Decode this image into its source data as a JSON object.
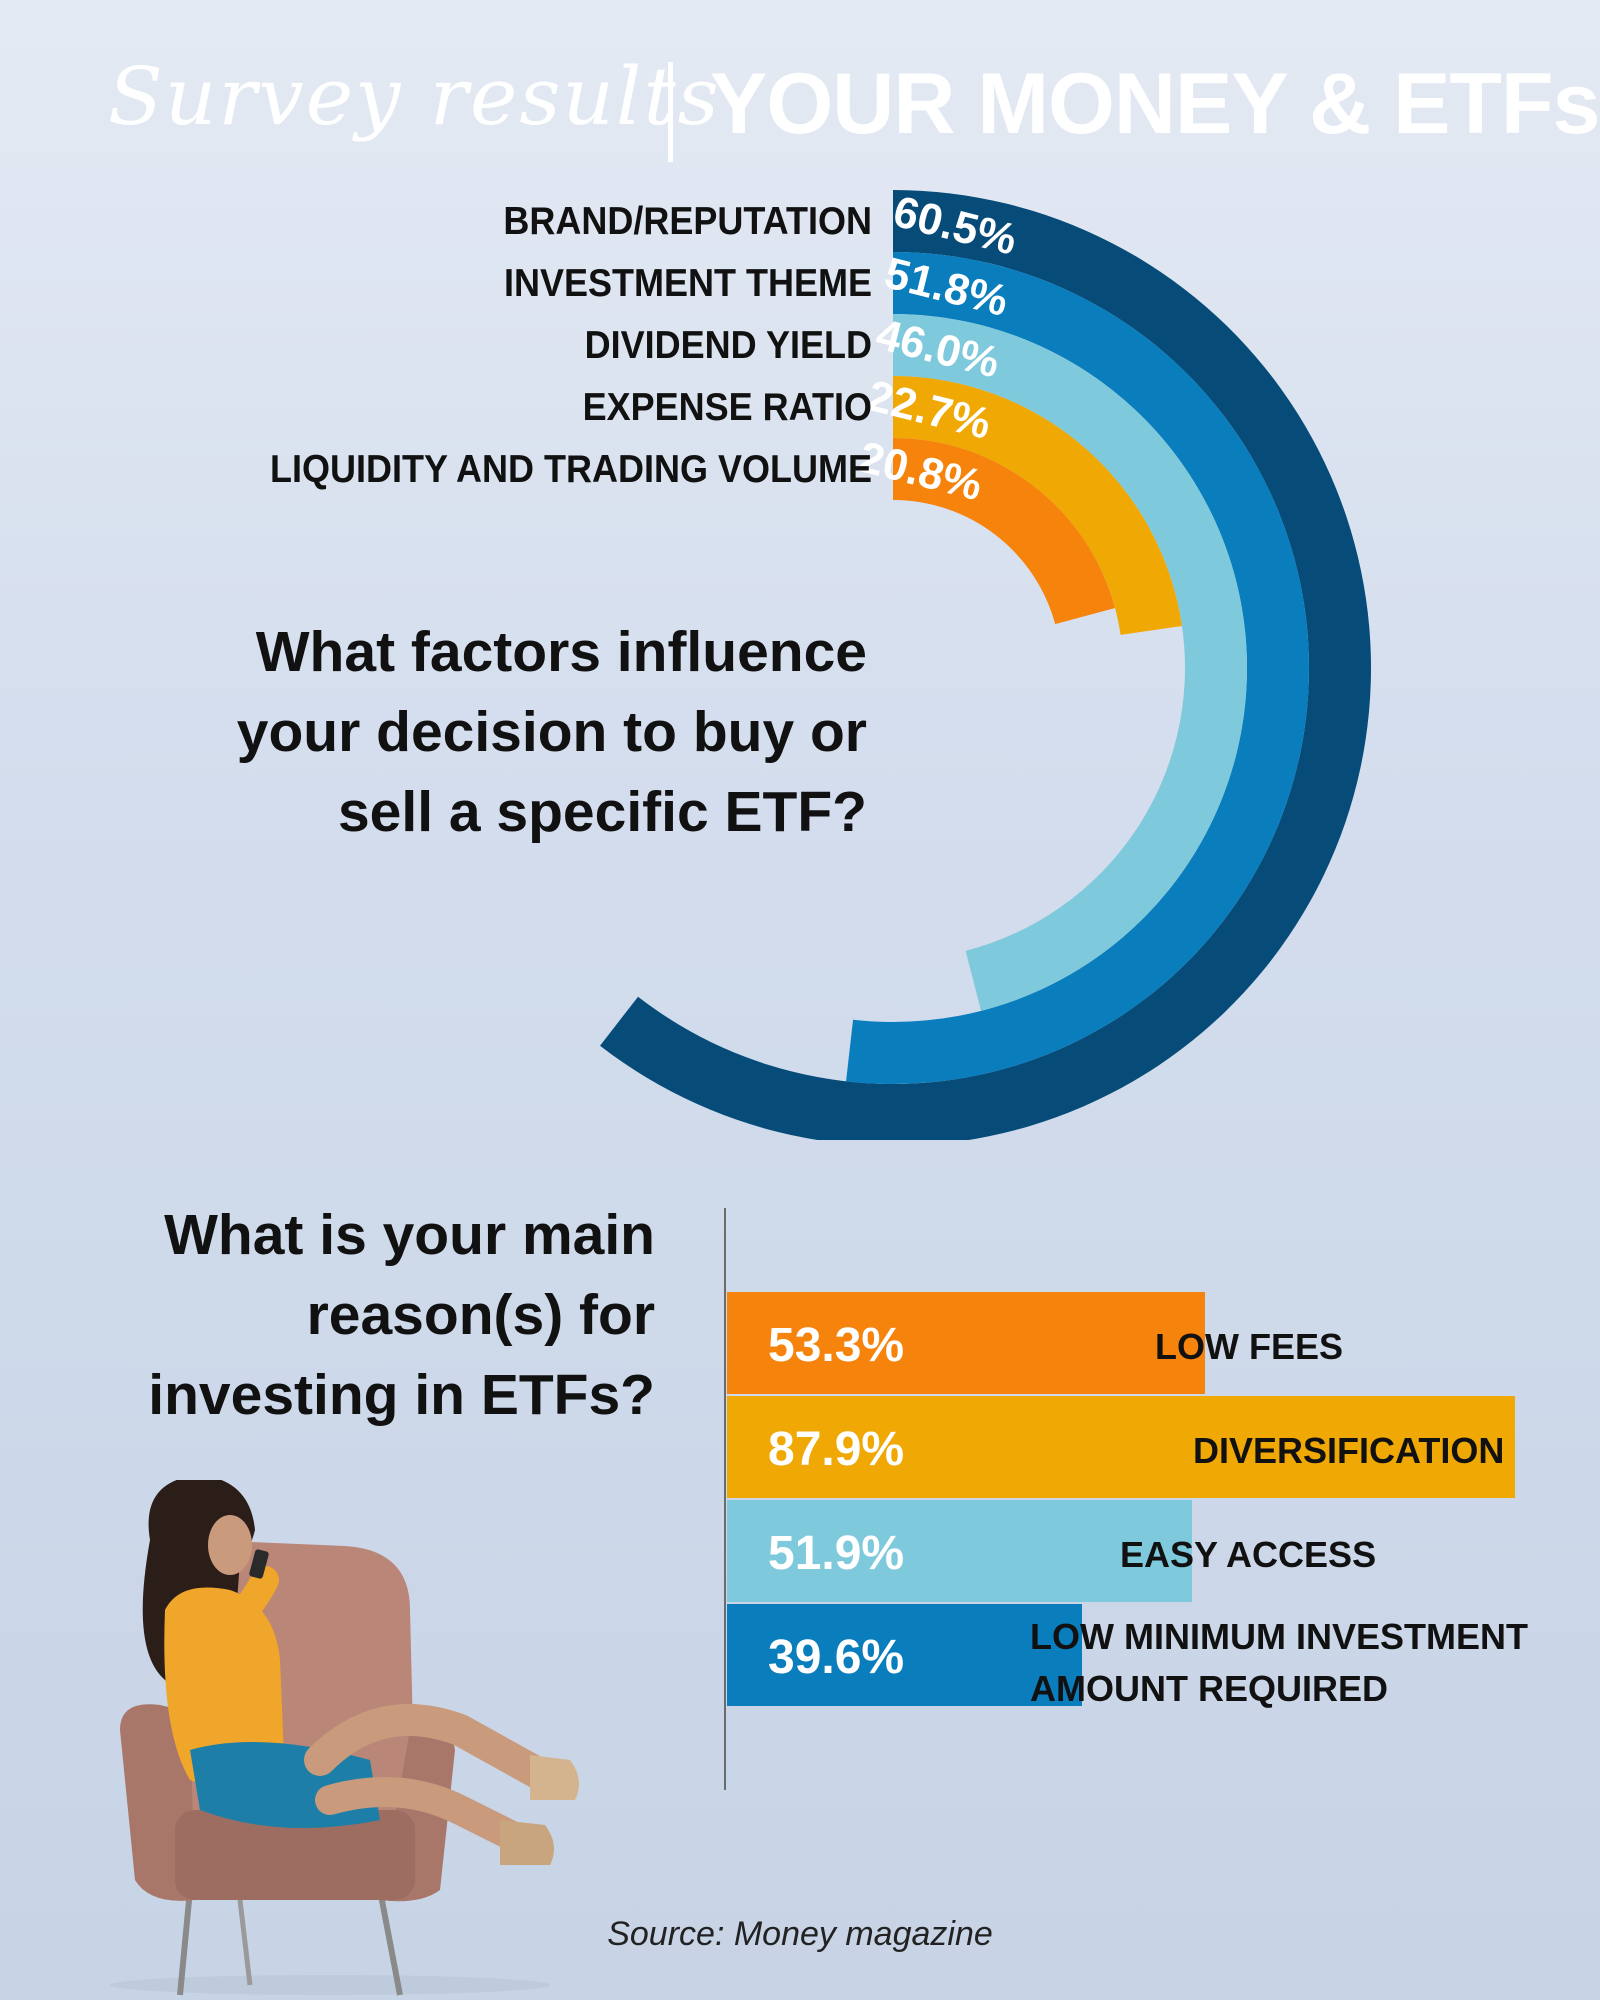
{
  "header": {
    "script_title": "Survey results",
    "bold_title": "YOUR MONEY & ETFs"
  },
  "chart_data": [
    {
      "type": "radial-bar",
      "title": "What factors influence your decision to buy or sell a specific ETF?",
      "categories": [
        "BRAND/REPUTATION",
        "INVESTMENT THEME",
        "DIVIDEND YIELD",
        "EXPENSE RATIO",
        "LIQUIDITY AND TRADING VOLUME"
      ],
      "values": [
        60.5,
        51.8,
        46.0,
        22.7,
        20.8
      ],
      "value_labels": [
        "60.5%",
        "51.8%",
        "46.0%",
        "22.7%",
        "20.8%"
      ],
      "colors": [
        "#074b79",
        "#0a7dbd",
        "#7fc9dc",
        "#f0a804",
        "#f6830b"
      ],
      "ylim": [
        0,
        100
      ]
    },
    {
      "type": "bar",
      "orientation": "horizontal",
      "title": "What is your main reason(s) for investing in ETFs?",
      "categories": [
        "LOW FEES",
        "DIVERSIFICATION",
        "EASY ACCESS",
        "LOW MINIMUM INVESTMENT AMOUNT REQUIRED"
      ],
      "values": [
        53.3,
        87.9,
        51.9,
        39.6
      ],
      "value_labels": [
        "53.3%",
        "87.9%",
        "51.9%",
        "39.6%"
      ],
      "colors": [
        "#f6830b",
        "#f0a804",
        "#7fc9dc",
        "#0a7dbd"
      ]
    }
  ],
  "questions": {
    "q1": "What factors influence your decision to buy or sell a specific ETF?",
    "q2": "What is your main reason(s) for investing in ETFs?"
  },
  "hbar_labels": {
    "low_fees": "LOW FEES",
    "diversification": "DIVERSIFICATION",
    "easy_access": "EASY ACCESS",
    "low_min_line1": "LOW MINIMUM INVESTMENT",
    "low_min_line2": "AMOUNT REQUIRED"
  },
  "source": "Source: Money magazine",
  "photo": {
    "icon": "woman-in-armchair-with-phone"
  }
}
